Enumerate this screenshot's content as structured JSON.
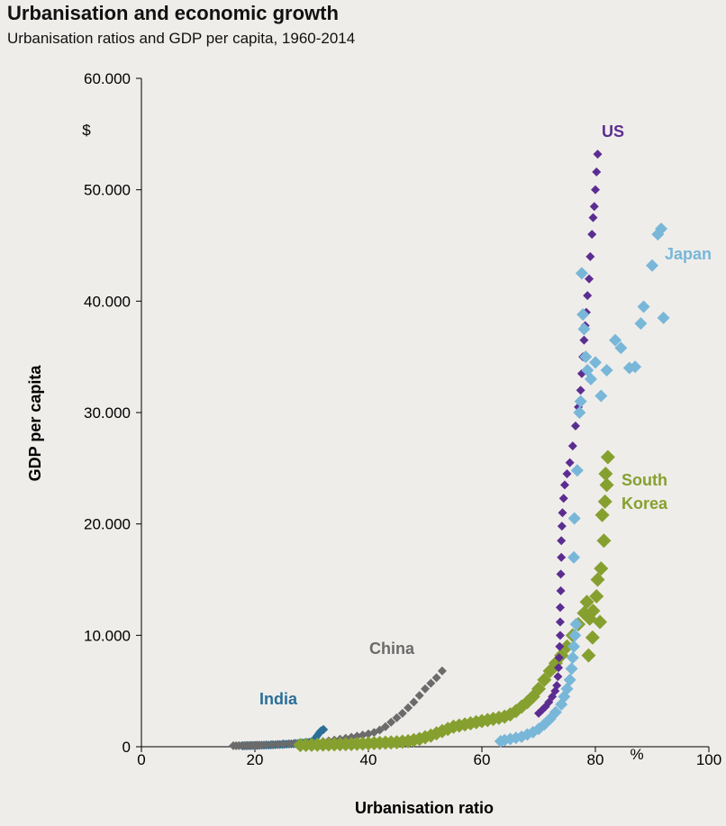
{
  "title": "Urbanisation and economic growth",
  "subtitle": "Urbanisation ratios and GDP per capita, 1960-2014",
  "chart_data": {
    "type": "scatter",
    "title": "Urbanisation and economic growth",
    "subtitle": "Urbanisation ratios and GDP per capita, 1960-2014",
    "xlabel": "Urbanisation ratio",
    "ylabel": "GDP per capita",
    "x_unit": "%",
    "y_unit": "$",
    "xlim": [
      0,
      100
    ],
    "ylim": [
      0,
      60000
    ],
    "x_ticks": [
      0,
      20,
      40,
      60,
      80,
      100
    ],
    "x_tick_labels": [
      "0",
      "20",
      "40",
      "60",
      "80",
      "100"
    ],
    "y_ticks": [
      0,
      10000,
      20000,
      30000,
      40000,
      50000,
      60000
    ],
    "y_tick_labels": [
      "0",
      "10.000",
      "20.000",
      "30.000",
      "40.000",
      "50.000",
      "60.000"
    ],
    "grid": false,
    "legend": "inline labels",
    "series": [
      {
        "name": "India",
        "color": "#2a6f97",
        "marker_size": 5,
        "label_lines": [
          "India"
        ],
        "points": [
          [
            17.9,
            80
          ],
          [
            18.2,
            90
          ],
          [
            18.5,
            95
          ],
          [
            18.8,
            100
          ],
          [
            19.1,
            105
          ],
          [
            19.4,
            110
          ],
          [
            19.7,
            115
          ],
          [
            20.0,
            120
          ],
          [
            20.4,
            125
          ],
          [
            20.8,
            130
          ],
          [
            21.2,
            135
          ],
          [
            21.6,
            140
          ],
          [
            22.0,
            145
          ],
          [
            22.4,
            150
          ],
          [
            22.8,
            160
          ],
          [
            23.2,
            170
          ],
          [
            23.6,
            180
          ],
          [
            24.0,
            190
          ],
          [
            24.4,
            200
          ],
          [
            24.8,
            210
          ],
          [
            25.2,
            220
          ],
          [
            25.6,
            230
          ],
          [
            26.0,
            240
          ],
          [
            26.4,
            250
          ],
          [
            26.8,
            260
          ],
          [
            27.2,
            280
          ],
          [
            27.6,
            300
          ],
          [
            28.0,
            320
          ],
          [
            28.4,
            340
          ],
          [
            28.8,
            360
          ],
          [
            29.2,
            380
          ],
          [
            29.6,
            400
          ],
          [
            30.0,
            480
          ],
          [
            30.4,
            600
          ],
          [
            30.7,
            800
          ],
          [
            31.0,
            1000
          ],
          [
            31.3,
            1200
          ],
          [
            31.6,
            1400
          ],
          [
            31.9,
            1500
          ],
          [
            32.1,
            1550
          ]
        ]
      },
      {
        "name": "China",
        "color": "#6b6b6b",
        "marker_size": 5,
        "label_lines": [
          "China"
        ],
        "points": [
          [
            16.2,
            90
          ],
          [
            16.7,
            95
          ],
          [
            17.2,
            100
          ],
          [
            17.7,
            105
          ],
          [
            18.2,
            110
          ],
          [
            18.7,
            115
          ],
          [
            19.2,
            120
          ],
          [
            19.7,
            125
          ],
          [
            20.2,
            130
          ],
          [
            20.7,
            135
          ],
          [
            21.2,
            150
          ],
          [
            22.0,
            170
          ],
          [
            23.0,
            190
          ],
          [
            24.0,
            210
          ],
          [
            25.0,
            240
          ],
          [
            26.0,
            260
          ],
          [
            27.0,
            290
          ],
          [
            28.0,
            310
          ],
          [
            29.0,
            340
          ],
          [
            30.0,
            380
          ],
          [
            31.0,
            420
          ],
          [
            32.0,
            470
          ],
          [
            33.0,
            530
          ],
          [
            34.0,
            600
          ],
          [
            35.0,
            680
          ],
          [
            36.0,
            760
          ],
          [
            37.0,
            850
          ],
          [
            38.0,
            950
          ],
          [
            39.0,
            1050
          ],
          [
            40.0,
            1150
          ],
          [
            41.0,
            1280
          ],
          [
            42.0,
            1500
          ],
          [
            43.0,
            1800
          ],
          [
            44.0,
            2200
          ],
          [
            45.0,
            2600
          ],
          [
            46.0,
            3000
          ],
          [
            47.0,
            3500
          ],
          [
            48.0,
            4000
          ],
          [
            49.0,
            4600
          ],
          [
            50.0,
            5200
          ],
          [
            51.0,
            5700
          ],
          [
            52.0,
            6200
          ],
          [
            53.0,
            6800
          ]
        ]
      },
      {
        "name": "South Korea",
        "color": "#86a02f",
        "marker_size": 8,
        "label_lines": [
          "South",
          "Korea"
        ],
        "points": [
          [
            28,
            150
          ],
          [
            29,
            160
          ],
          [
            30,
            170
          ],
          [
            31,
            180
          ],
          [
            32,
            190
          ],
          [
            33,
            200
          ],
          [
            34,
            210
          ],
          [
            35,
            220
          ],
          [
            36,
            230
          ],
          [
            37,
            240
          ],
          [
            38,
            260
          ],
          [
            39,
            280
          ],
          [
            40,
            300
          ],
          [
            41,
            320
          ],
          [
            42,
            340
          ],
          [
            43,
            360
          ],
          [
            44,
            380
          ],
          [
            45,
            400
          ],
          [
            46,
            450
          ],
          [
            47,
            500
          ],
          [
            48,
            600
          ],
          [
            49,
            700
          ],
          [
            50,
            850
          ],
          [
            51,
            1000
          ],
          [
            52,
            1200
          ],
          [
            53,
            1400
          ],
          [
            54,
            1600
          ],
          [
            55,
            1800
          ],
          [
            56,
            1900
          ],
          [
            57,
            2000
          ],
          [
            58,
            2100
          ],
          [
            59,
            2200
          ],
          [
            60,
            2300
          ],
          [
            61,
            2400
          ],
          [
            62,
            2500
          ],
          [
            63,
            2600
          ],
          [
            64,
            2700
          ],
          [
            65,
            2900
          ],
          [
            66,
            3200
          ],
          [
            67,
            3600
          ],
          [
            68,
            4000
          ],
          [
            69,
            4500
          ],
          [
            70,
            5200
          ],
          [
            71,
            6000
          ],
          [
            72,
            6800
          ],
          [
            73,
            7500
          ],
          [
            74,
            8200
          ],
          [
            75,
            9000
          ],
          [
            76,
            10000
          ],
          [
            77,
            11000
          ],
          [
            78,
            12000
          ],
          [
            78.5,
            13000
          ],
          [
            79,
            11500
          ],
          [
            79.5,
            9800
          ],
          [
            78.8,
            8200
          ],
          [
            79.6,
            12200
          ],
          [
            80.2,
            13500
          ],
          [
            80.8,
            11200
          ],
          [
            80.4,
            15000
          ],
          [
            81.0,
            16000
          ],
          [
            81.5,
            18500
          ],
          [
            81.2,
            20800
          ],
          [
            81.7,
            22000
          ],
          [
            82.0,
            23500
          ],
          [
            81.8,
            24500
          ],
          [
            82.2,
            26000
          ]
        ]
      },
      {
        "name": "US",
        "color": "#5c2d91",
        "marker_size": 5,
        "label_lines": [
          "US"
        ],
        "points": [
          [
            70.0,
            3000
          ],
          [
            70.6,
            3300
          ],
          [
            71.2,
            3600
          ],
          [
            71.8,
            4000
          ],
          [
            72.4,
            4500
          ],
          [
            72.9,
            5000
          ],
          [
            73.2,
            5500
          ],
          [
            73.4,
            6300
          ],
          [
            73.5,
            7100
          ],
          [
            73.6,
            8000
          ],
          [
            73.7,
            9000
          ],
          [
            73.8,
            10000
          ],
          [
            73.8,
            11200
          ],
          [
            73.8,
            12500
          ],
          [
            73.9,
            14000
          ],
          [
            73.9,
            15500
          ],
          [
            74.0,
            17000
          ],
          [
            74.0,
            18500
          ],
          [
            74.1,
            19800
          ],
          [
            74.2,
            21000
          ],
          [
            74.4,
            22300
          ],
          [
            74.6,
            23500
          ],
          [
            75.0,
            24500
          ],
          [
            75.5,
            25500
          ],
          [
            76.0,
            27000
          ],
          [
            76.5,
            28800
          ],
          [
            77.0,
            30500
          ],
          [
            77.4,
            32000
          ],
          [
            77.6,
            33500
          ],
          [
            77.8,
            35000
          ],
          [
            78.0,
            36500
          ],
          [
            78.2,
            37800
          ],
          [
            78.4,
            39000
          ],
          [
            78.6,
            40500
          ],
          [
            78.9,
            42000
          ],
          [
            79.1,
            44000
          ],
          [
            79.4,
            46000
          ],
          [
            79.6,
            47500
          ],
          [
            79.8,
            48500
          ],
          [
            80.0,
            50000
          ],
          [
            80.2,
            51600
          ],
          [
            80.4,
            53200
          ]
        ]
      },
      {
        "name": "Japan",
        "color": "#79b7d9",
        "marker_size": 7,
        "label_lines": [
          "Japan"
        ],
        "points": [
          [
            63.3,
            500
          ],
          [
            64,
            600
          ],
          [
            65,
            700
          ],
          [
            66,
            800
          ],
          [
            67,
            900
          ],
          [
            68,
            1100
          ],
          [
            69,
            1300
          ],
          [
            70,
            1600
          ],
          [
            71,
            2000
          ],
          [
            72,
            2500
          ],
          [
            73,
            3100
          ],
          [
            74,
            3800
          ],
          [
            74.5,
            4500
          ],
          [
            75,
            5200
          ],
          [
            75.5,
            6000
          ],
          [
            75.8,
            7000
          ],
          [
            76,
            8000
          ],
          [
            76.2,
            9000
          ],
          [
            76.4,
            10000
          ],
          [
            76.6,
            11000
          ],
          [
            76.2,
            17000
          ],
          [
            76.3,
            20500
          ],
          [
            76.8,
            24800
          ],
          [
            77.2,
            30000
          ],
          [
            77.4,
            31000
          ],
          [
            77.8,
            38800
          ],
          [
            77.6,
            42500
          ],
          [
            78.0,
            37500
          ],
          [
            78.3,
            35000
          ],
          [
            78.6,
            33800
          ],
          [
            79.2,
            33000
          ],
          [
            80.0,
            34500
          ],
          [
            81.0,
            31500
          ],
          [
            82.0,
            33800
          ],
          [
            83.5,
            36500
          ],
          [
            84.5,
            35800
          ],
          [
            86.0,
            34000
          ],
          [
            87.0,
            34100
          ],
          [
            88.0,
            38000
          ],
          [
            88.5,
            39500
          ],
          [
            90.0,
            43200
          ],
          [
            91.0,
            46000
          ],
          [
            91.6,
            46500
          ],
          [
            92.0,
            38500
          ]
        ]
      }
    ]
  }
}
